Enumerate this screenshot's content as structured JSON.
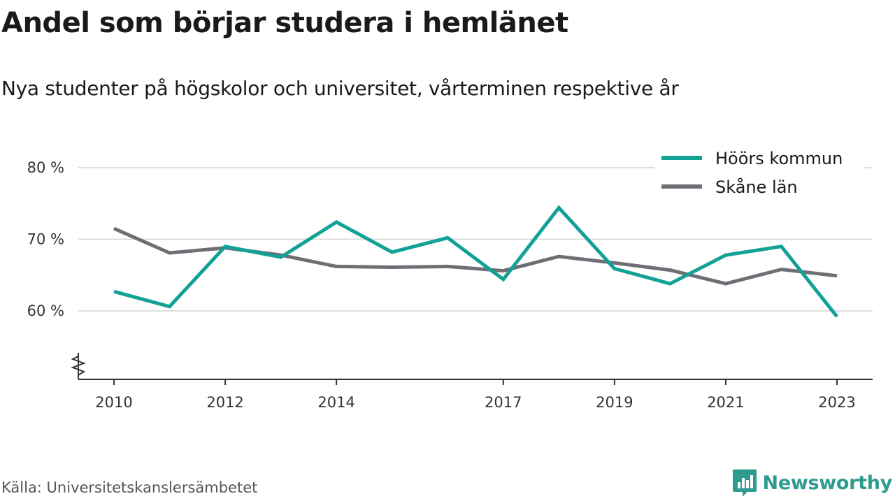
{
  "header": {
    "title": "Andel som börjar studera i hemlänet",
    "subtitle": "Nya studenter på högskolor och universitet, vårterminen respektive år"
  },
  "footer": {
    "source": "Källa: Universitetskanslersämbetet",
    "brand": "Newsworthy",
    "brand_color": "#2e9b8f"
  },
  "chart_data": {
    "type": "line",
    "title": "Andel som börjar studera i hemlänet",
    "subtitle": "Nya studenter på högskolor och universitet, vårterminen respektive år",
    "xlabel": "",
    "ylabel": "",
    "x": [
      2010,
      2011,
      2012,
      2013,
      2014,
      2015,
      2016,
      2017,
      2018,
      2019,
      2020,
      2021,
      2022,
      2023
    ],
    "x_ticks": [
      "2010",
      "2012",
      "2014",
      "2017",
      "2019",
      "2021",
      "2023"
    ],
    "y_ticks": [
      {
        "value": 80,
        "label": "80 %"
      },
      {
        "value": 70,
        "label": "70 %"
      },
      {
        "value": 60,
        "label": "60 %"
      }
    ],
    "ylim": [
      50,
      84
    ],
    "y_axis_break": true,
    "grid": "horizontal",
    "legend_position": "top-right",
    "series": [
      {
        "name": "Höörs kommun",
        "color": "#12a195",
        "values": [
          62.7,
          60.6,
          69.0,
          67.5,
          72.4,
          68.2,
          70.2,
          64.4,
          74.4,
          65.9,
          63.8,
          67.8,
          69.0,
          59.2
        ]
      },
      {
        "name": "Skåne län",
        "color": "#6f6e75",
        "values": [
          71.5,
          68.1,
          68.8,
          67.8,
          66.2,
          66.1,
          66.2,
          65.6,
          67.6,
          66.7,
          65.7,
          63.8,
          65.8,
          64.9
        ]
      }
    ]
  }
}
